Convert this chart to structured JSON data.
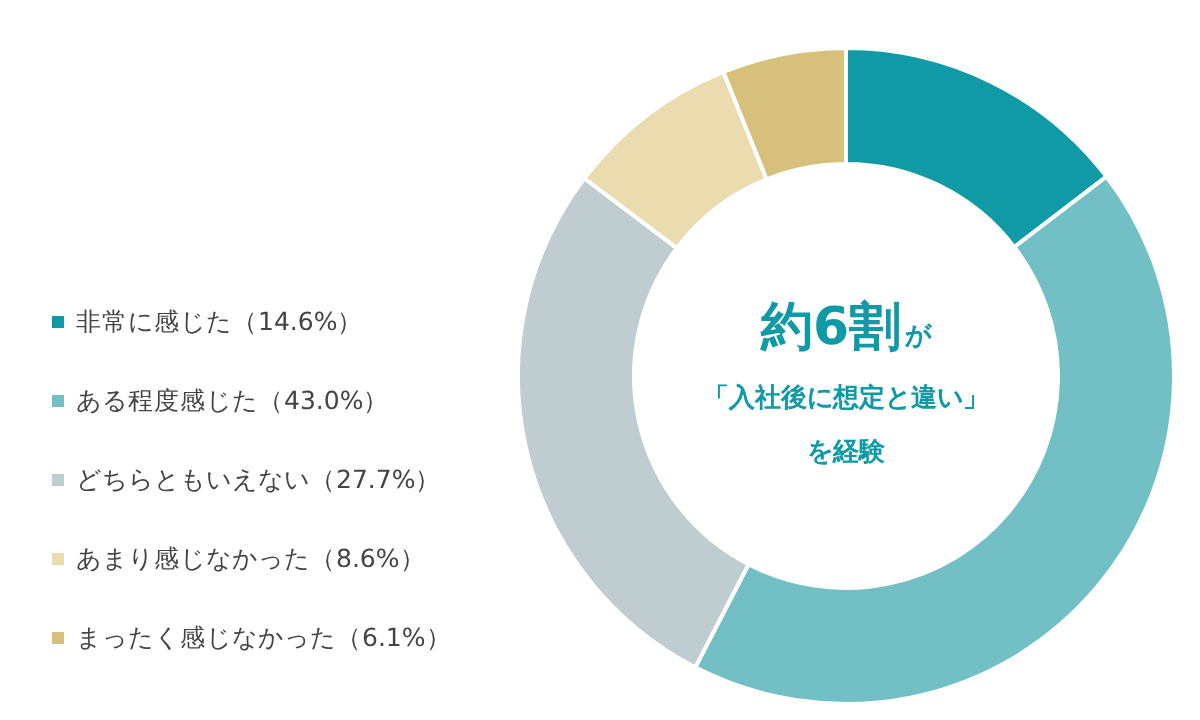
{
  "chart_data": {
    "type": "donut",
    "categories": [
      "非常に感じた",
      "ある程度感じた",
      "どちらともいえない",
      "あまり感じなかった",
      "まったく感じなかった"
    ],
    "values": [
      14.6,
      43.0,
      27.7,
      8.6,
      6.1
    ],
    "value_labels": [
      "（14.6%）",
      "（43.0%）",
      "（27.7%）",
      "（8.6%）",
      "（6.1%）"
    ],
    "colors": [
      "#0f9aa6",
      "#72c0c5",
      "#bfccd0",
      "#eadcae",
      "#d6c07c"
    ],
    "legend": "left",
    "annotations": [
      "約6割",
      "が",
      "「入社後に想定と違い」",
      "を経験"
    ]
  }
}
